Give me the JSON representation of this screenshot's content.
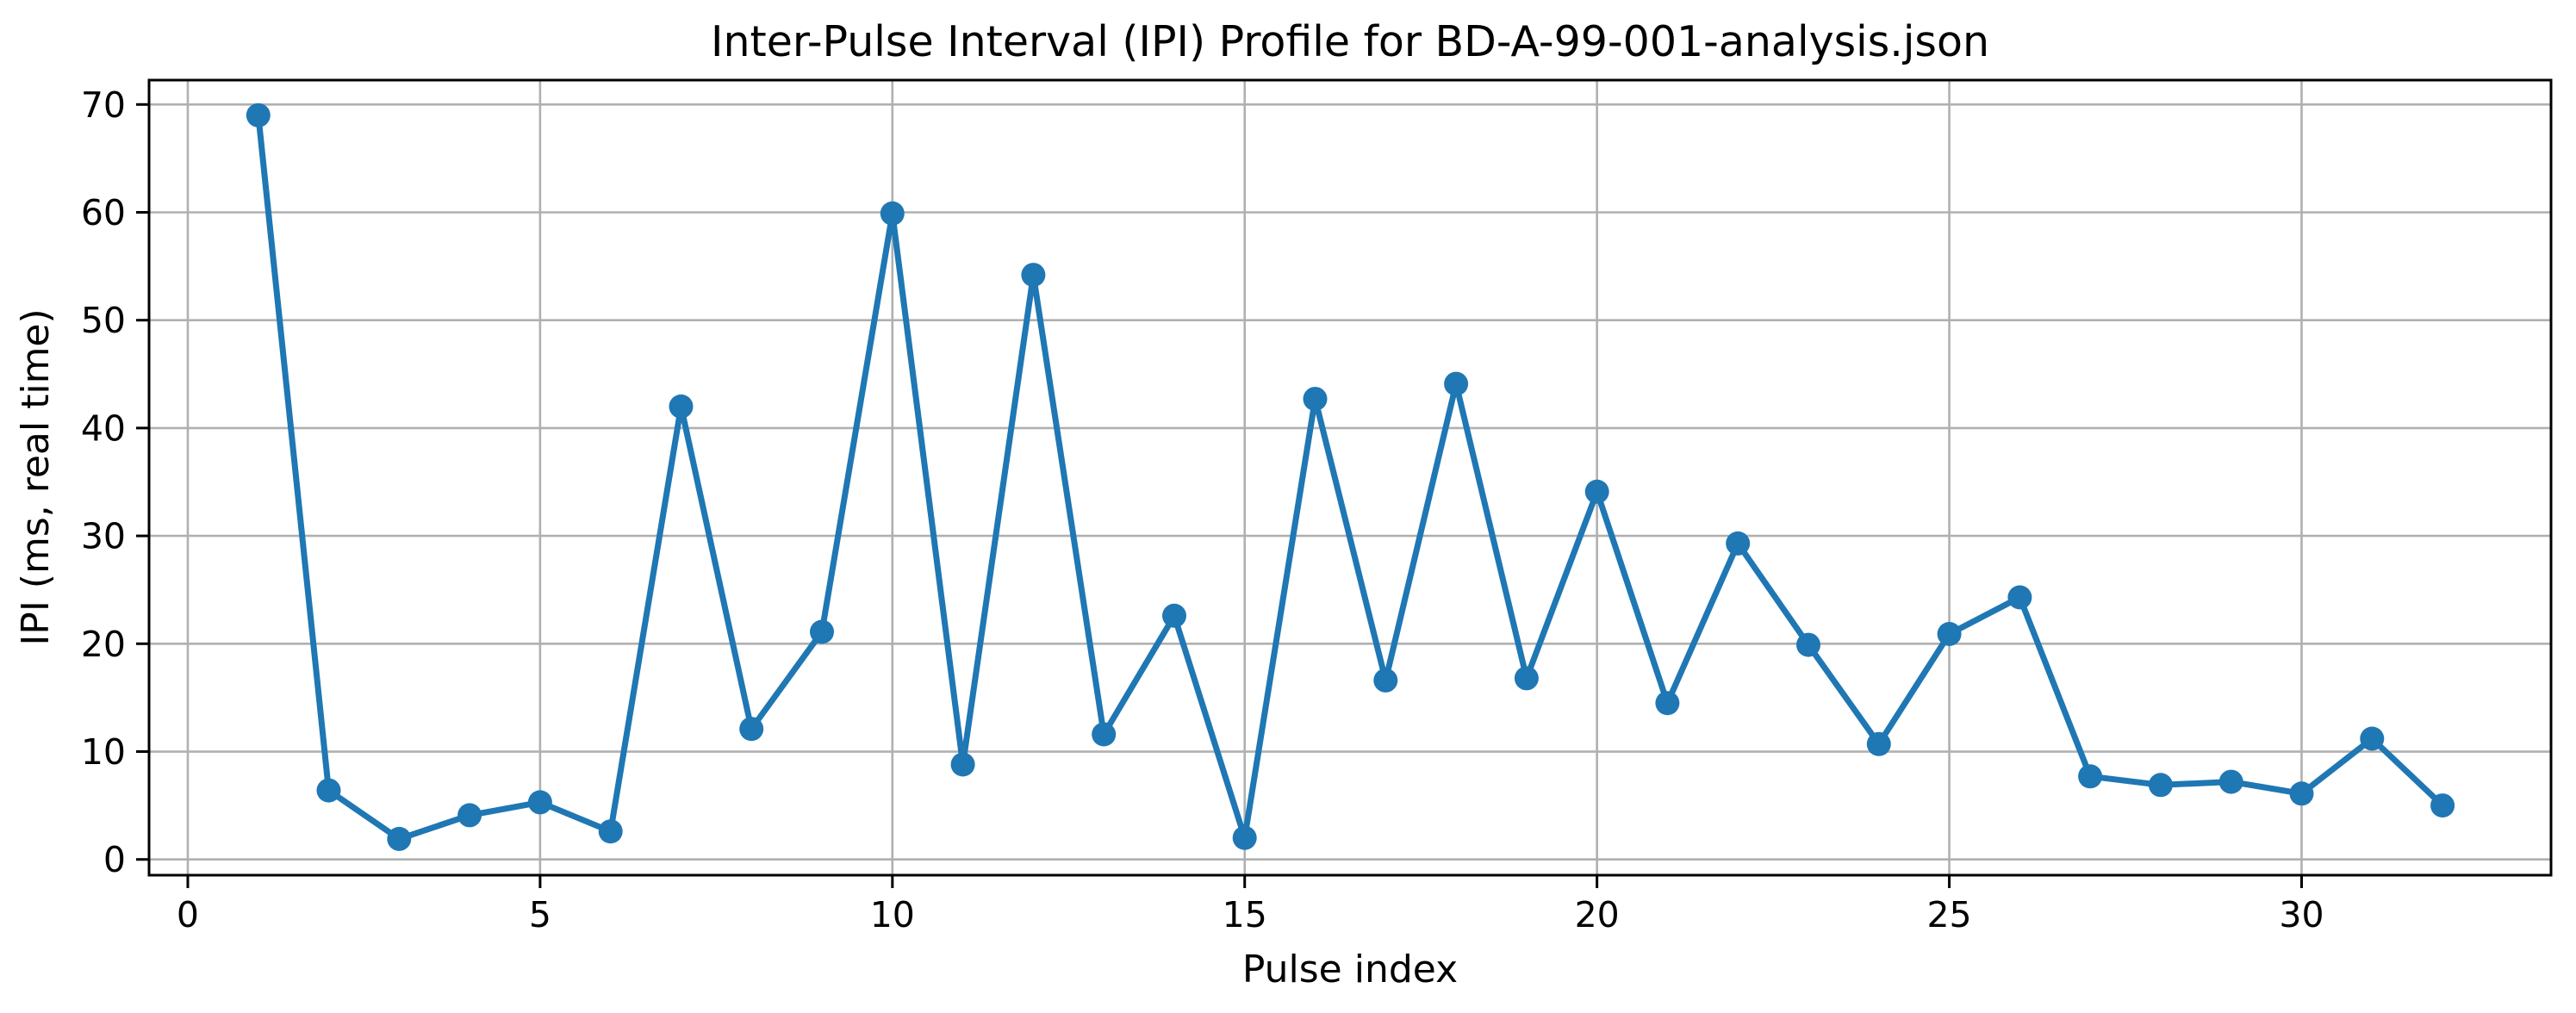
{
  "chart_data": {
    "type": "line",
    "title": "Inter-Pulse Interval (IPI) Profile for BD-A-99-001-analysis.json",
    "xlabel": "Pulse index",
    "ylabel": "IPI (ms, real time)",
    "x": [
      1,
      2,
      3,
      4,
      5,
      6,
      7,
      8,
      9,
      10,
      11,
      12,
      13,
      14,
      15,
      16,
      17,
      18,
      19,
      20,
      21,
      22,
      23,
      24,
      25,
      26,
      27,
      28,
      29,
      30,
      31,
      32
    ],
    "y": [
      69.0,
      6.4,
      1.9,
      4.1,
      5.3,
      2.6,
      42.0,
      12.1,
      21.1,
      59.9,
      8.8,
      54.2,
      11.6,
      22.6,
      2.0,
      42.7,
      16.6,
      44.1,
      16.8,
      34.1,
      14.5,
      29.3,
      19.9,
      10.7,
      20.9,
      24.3,
      7.7,
      6.9,
      7.2,
      6.1,
      11.2,
      5.0
    ],
    "xticks": [
      0,
      5,
      10,
      15,
      20,
      25,
      30
    ],
    "yticks": [
      0,
      10,
      20,
      30,
      40,
      50,
      60,
      70
    ],
    "xlim": [
      -0.55,
      33.54
    ],
    "ylim": [
      -1.46,
      72.26
    ],
    "grid": true,
    "legend": null,
    "line_color": "#1f77b4",
    "marker": "o",
    "grid_color": "#b0b0b0"
  }
}
